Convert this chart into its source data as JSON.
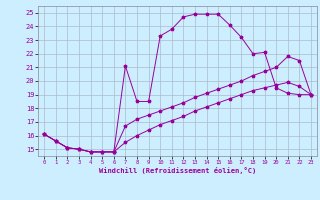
{
  "xlabel": "Windchill (Refroidissement éolien,°C)",
  "xlim": [
    -0.5,
    23.5
  ],
  "ylim": [
    14.5,
    25.5
  ],
  "xticks": [
    0,
    1,
    2,
    3,
    4,
    5,
    6,
    7,
    8,
    9,
    10,
    11,
    12,
    13,
    14,
    15,
    16,
    17,
    18,
    19,
    20,
    21,
    22,
    23
  ],
  "yticks": [
    15,
    16,
    17,
    18,
    19,
    20,
    21,
    22,
    23,
    24,
    25
  ],
  "background_color": "#cceeff",
  "grid_color": "#aabbcc",
  "line_color": "#990099",
  "line1_x": [
    0,
    1,
    2,
    3,
    4,
    5,
    6,
    7,
    8,
    9,
    10,
    11,
    12,
    13,
    14,
    15,
    16,
    17,
    18,
    19,
    20,
    21,
    22,
    23
  ],
  "line1_y": [
    16.1,
    15.6,
    15.1,
    15.0,
    14.8,
    14.8,
    14.8,
    21.1,
    18.5,
    18.5,
    23.3,
    23.8,
    24.7,
    24.9,
    24.9,
    24.9,
    24.1,
    23.2,
    22.0,
    22.1,
    19.5,
    19.1,
    19.0,
    19.0
  ],
  "line2_x": [
    0,
    1,
    2,
    3,
    4,
    5,
    6,
    7,
    8,
    9,
    10,
    11,
    12,
    13,
    14,
    15,
    16,
    17,
    18,
    19,
    20,
    21,
    22,
    23
  ],
  "line2_y": [
    16.1,
    15.6,
    15.1,
    15.0,
    14.8,
    14.8,
    14.8,
    16.7,
    17.2,
    17.5,
    17.8,
    18.1,
    18.4,
    18.8,
    19.1,
    19.4,
    19.7,
    20.0,
    20.4,
    20.7,
    21.0,
    21.8,
    21.5,
    19.0
  ],
  "line3_x": [
    0,
    1,
    2,
    3,
    4,
    5,
    6,
    7,
    8,
    9,
    10,
    11,
    12,
    13,
    14,
    15,
    16,
    17,
    18,
    19,
    20,
    21,
    22,
    23
  ],
  "line3_y": [
    16.1,
    15.6,
    15.1,
    15.0,
    14.8,
    14.8,
    14.8,
    15.5,
    16.0,
    16.4,
    16.8,
    17.1,
    17.4,
    17.8,
    18.1,
    18.4,
    18.7,
    19.0,
    19.3,
    19.5,
    19.7,
    19.9,
    19.6,
    19.0
  ]
}
